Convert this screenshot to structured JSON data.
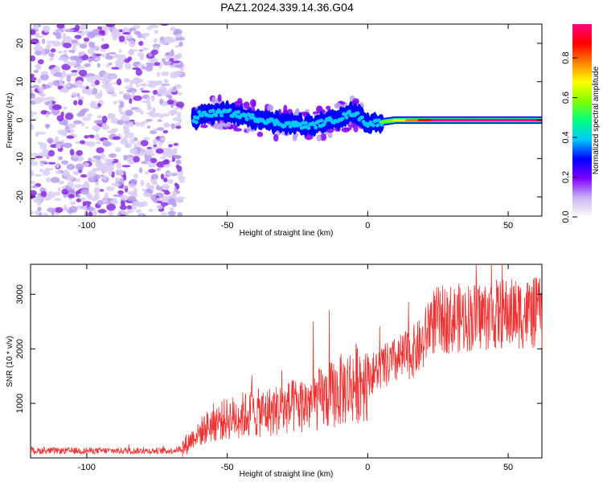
{
  "title": "PAZ1.2024.339.14.36.G04",
  "chart_data": [
    {
      "type": "heatmap",
      "xlabel": "Height of straight line (km)",
      "ylabel": "Frequency (Hz)",
      "xlim": [
        -120,
        62
      ],
      "ylim": [
        -25,
        25
      ],
      "xticks": [
        -100,
        -50,
        0,
        50
      ],
      "yticks": [
        -20,
        -10,
        0,
        10,
        20
      ],
      "colorbar": {
        "label": "Normalized spectral amplitude",
        "range": [
          0.0,
          0.97
        ],
        "ticks": [
          0.0,
          0.2,
          0.4,
          0.6,
          0.8
        ],
        "colormap": [
          "#ffffff",
          "#c8b4f0",
          "#7f00ff",
          "#0000ff",
          "#00c8ff",
          "#00ff80",
          "#80ff00",
          "#ffff00",
          "#ff8000",
          "#ff0000",
          "#ff0080"
        ]
      },
      "description_values": {
        "noise_region_x": [
          -120,
          -66
        ],
        "signal_track": [
          {
            "x": -60,
            "freq": 1.5
          },
          {
            "x": -50,
            "freq": 2.0
          },
          {
            "x": -40,
            "freq": 0.5
          },
          {
            "x": -30,
            "freq": -1.0
          },
          {
            "x": -20,
            "freq": -1.5
          },
          {
            "x": -10,
            "freq": 0.5
          },
          {
            "x": -5,
            "freq": 2.0
          },
          {
            "x": 0,
            "freq": -1.0
          },
          {
            "x": 10,
            "freq": 0.0
          },
          {
            "x": 30,
            "freq": 0.0
          },
          {
            "x": 62,
            "freq": 0.0
          }
        ]
      }
    },
    {
      "type": "line",
      "xlabel": "Height of straight line (km)",
      "ylabel": "SNR (10 * v/v)",
      "xlim": [
        -120,
        62
      ],
      "ylim": [
        0,
        3550
      ],
      "xticks": [
        -100,
        -50,
        0,
        50
      ],
      "yticks": [
        1000,
        2000,
        3000
      ],
      "color": "#ee3333",
      "envelope_x": [
        -120,
        -70,
        -66,
        -62,
        -55,
        -45,
        -35,
        -25,
        -15,
        -5,
        5,
        15,
        20,
        22,
        30,
        40,
        50,
        62
      ],
      "envelope_y": [
        130,
        130,
        170,
        380,
        650,
        780,
        850,
        950,
        1100,
        1350,
        1650,
        1900,
        2100,
        2500,
        2550,
        2600,
        2650,
        2650
      ]
    }
  ]
}
